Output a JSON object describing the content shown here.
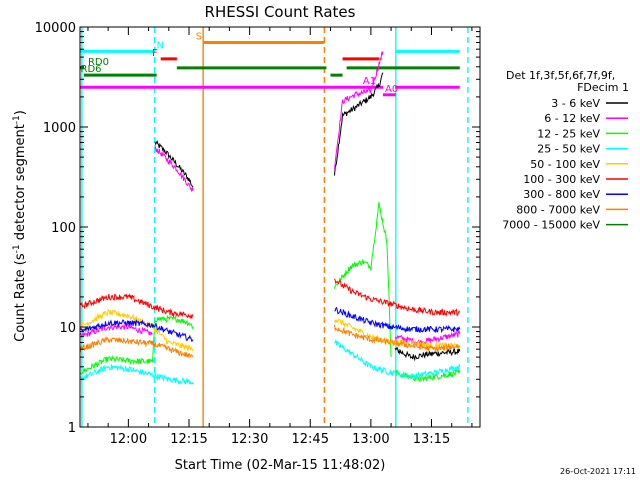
{
  "chart_data": {
    "type": "line",
    "title": "RHESSI Count Rates",
    "xlabel": "Start Time (02-Mar-15 11:48:02)",
    "ylabel": "Count Rate (s⁻¹ detector segment⁻¹)",
    "ylabel_parts": {
      "main": "Count Rate (s",
      "sup1": "-1",
      "mid": " detector segment",
      "sup2": "-1",
      "end": ")"
    },
    "y_scale": "log",
    "ylim": [
      1,
      10000
    ],
    "xlim": [
      "11:48:02",
      "13:27:00"
    ],
    "x_ticks": [
      "12:00",
      "12:15",
      "12:30",
      "12:45",
      "13:00",
      "13:15"
    ],
    "y_ticks": [
      "1",
      "10",
      "100",
      "1000",
      "10000"
    ],
    "legend_header": [
      "Det 1f,3f,5f,6f,7f,9f,",
      "FDecim 1"
    ],
    "legend_position": "right",
    "timestamp": "26-Oct-2021 17:11",
    "series": [
      {
        "name": "3 - 6 keV",
        "color": "#000000",
        "segments": [
          [
            [
              "12:06:35",
              700
            ],
            [
              "12:09",
              580
            ],
            [
              "12:12",
              420
            ],
            [
              "12:15",
              300
            ],
            [
              "12:16",
              250
            ]
          ],
          [
            [
              "12:51",
              330
            ],
            [
              "12:53",
              1300
            ],
            [
              "12:56",
              1550
            ],
            [
              "13:00",
              2000
            ],
            [
              "13:02",
              2600
            ],
            [
              "13:03",
              3500
            ]
          ],
          [
            [
              "13:06",
              6
            ],
            [
              "13:10",
              5
            ],
            [
              "13:15",
              5.4
            ],
            [
              "13:22",
              5.7
            ]
          ]
        ]
      },
      {
        "name": "6 - 12 keV",
        "color": "#ff00ff",
        "segments": [
          [
            [
              "11:48",
              8
            ],
            [
              "11:55",
              10
            ],
            [
              "12:00",
              10
            ],
            [
              "12:06",
              8.5
            ]
          ],
          [
            [
              "12:06:35",
              620
            ],
            [
              "12:09",
              500
            ],
            [
              "12:12",
              380
            ],
            [
              "12:15",
              260
            ],
            [
              "12:16",
              230
            ]
          ],
          [
            [
              "12:51",
              400
            ],
            [
              "12:53",
              1800
            ],
            [
              "12:56",
              2100
            ],
            [
              "13:00",
              2300
            ],
            [
              "13:03",
              5700
            ]
          ],
          [
            [
              "13:06",
              8
            ],
            [
              "13:12",
              7
            ],
            [
              "13:22",
              8.5
            ]
          ]
        ]
      },
      {
        "name": "12 - 25 keV",
        "color": "#00ff00",
        "segments": [
          [
            [
              "11:48",
              3.5
            ],
            [
              "11:55",
              4.8
            ],
            [
              "12:00",
              4.6
            ],
            [
              "12:06",
              4.5
            ],
            [
              "12:06:35",
              12
            ],
            [
              "12:12",
              12
            ],
            [
              "12:15",
              11
            ],
            [
              "12:16",
              10
            ]
          ],
          [
            [
              "12:51",
              25
            ],
            [
              "12:55",
              40
            ],
            [
              "12:58",
              45
            ],
            [
              "13:00",
              40
            ],
            [
              "13:02",
              170
            ],
            [
              "13:04",
              70
            ],
            [
              "13:05",
              5
            ]
          ],
          [
            [
              "13:06",
              3.5
            ],
            [
              "13:12",
              3.0
            ],
            [
              "13:22",
              3.5
            ]
          ]
        ]
      },
      {
        "name": "25 - 50 keV",
        "color": "#00ffff",
        "segments": [
          [
            [
              "11:48",
              3.0
            ],
            [
              "11:55",
              4.0
            ],
            [
              "12:00",
              3.8
            ],
            [
              "12:06",
              3.3
            ],
            [
              "12:10",
              3.0
            ],
            [
              "12:16",
              2.8
            ]
          ],
          [
            [
              "12:51",
              7
            ],
            [
              "12:55",
              5.5
            ],
            [
              "13:00",
              4.0
            ],
            [
              "13:05",
              3.5
            ],
            [
              "13:10",
              3.2
            ],
            [
              "13:16",
              3.5
            ],
            [
              "13:22",
              4.0
            ]
          ]
        ]
      },
      {
        "name": "50 - 100 keV",
        "color": "#ffcc00",
        "segments": [
          [
            [
              "11:48",
              10
            ],
            [
              "11:55",
              14
            ],
            [
              "12:00",
              13
            ],
            [
              "12:06",
              10
            ],
            [
              "12:10",
              7
            ],
            [
              "12:16",
              6
            ]
          ],
          [
            [
              "12:51",
              12
            ],
            [
              "12:55",
              10
            ],
            [
              "13:00",
              8
            ],
            [
              "13:05",
              7
            ],
            [
              "13:10",
              7
            ],
            [
              "13:16",
              6.5
            ],
            [
              "13:22",
              6.5
            ]
          ]
        ]
      },
      {
        "name": "100 - 300 keV",
        "color": "#ff0000",
        "segments": [
          [
            [
              "11:48",
              16
            ],
            [
              "11:55",
              20
            ],
            [
              "12:00",
              20
            ],
            [
              "12:06",
              16
            ],
            [
              "12:10",
              14
            ],
            [
              "12:16",
              13
            ]
          ],
          [
            [
              "12:51",
              30
            ],
            [
              "12:53",
              26
            ],
            [
              "12:56",
              22
            ],
            [
              "13:00",
              19
            ],
            [
              "13:05",
              17
            ],
            [
              "13:10",
              15
            ],
            [
              "13:16",
              14
            ],
            [
              "13:22",
              14
            ]
          ]
        ]
      },
      {
        "name": "300 - 800 keV",
        "color": "#0000ff",
        "segments": [
          [
            [
              "11:48",
              9
            ],
            [
              "11:55",
              11
            ],
            [
              "12:00",
              11
            ],
            [
              "12:06",
              10.5
            ],
            [
              "12:10",
              9
            ],
            [
              "12:16",
              7.5
            ]
          ],
          [
            [
              "12:51",
              15
            ],
            [
              "12:55",
              13
            ],
            [
              "13:00",
              11
            ],
            [
              "13:05",
              10
            ],
            [
              "13:10",
              9.5
            ],
            [
              "13:16",
              9.5
            ],
            [
              "13:22",
              9.5
            ]
          ]
        ]
      },
      {
        "name": "800 - 7000 keV",
        "color": "#ff8000",
        "segments": [
          [
            [
              "11:48",
              6
            ],
            [
              "11:55",
              7.5
            ],
            [
              "12:00",
              7.2
            ],
            [
              "12:06",
              6.8
            ],
            [
              "12:10",
              6
            ],
            [
              "12:16",
              5
            ]
          ],
          [
            [
              "12:51",
              10
            ],
            [
              "12:55",
              8.5
            ],
            [
              "13:00",
              7.5
            ],
            [
              "13:05",
              7
            ],
            [
              "13:10",
              6.5
            ],
            [
              "13:16",
              6
            ],
            [
              "13:22",
              6.5
            ]
          ]
        ]
      },
      {
        "name": "7000 - 15000 keV",
        "color": "#008000",
        "segments": []
      }
    ],
    "vertical_lines": [
      {
        "t": "11:48:30",
        "color": "#00ffff",
        "style": "solid"
      },
      {
        "t": "12:06:30",
        "color": "#00ffff",
        "style": "dashed"
      },
      {
        "t": "12:18:30",
        "color": "#ff8000",
        "style": "solid"
      },
      {
        "t": "12:48:30",
        "color": "#ff8000",
        "style": "dashed"
      },
      {
        "t": "13:06:10",
        "color": "#00ffff",
        "style": "solid"
      },
      {
        "t": "13:24:00",
        "color": "#00ffff",
        "style": "dashed"
      }
    ],
    "flag_bars": [
      {
        "label": "N",
        "color": "#00ffff",
        "y": 5700,
        "segments": [
          [
            "11:48",
            "12:06:30"
          ],
          [
            "13:06:10",
            "13:22"
          ]
        ],
        "label_at": "12:07"
      },
      {
        "label": "S",
        "color": "#ff8000",
        "y": 7000,
        "segments": [
          [
            "12:18:30",
            "12:48:30"
          ]
        ],
        "label_at": "12:16:40"
      },
      {
        "label": "F",
        "color": "#ff0000",
        "y": 4800,
        "segments": [
          [
            "12:08",
            "12:12"
          ],
          [
            "12:53",
            "13:02"
          ]
        ],
        "label_at": "12:05:50"
      },
      {
        "label": "RD0",
        "color": "#008000",
        "y": 3900,
        "segments": [
          [
            "11:48",
            "11:49"
          ],
          [
            "12:12",
            "12:49"
          ],
          [
            "12:54",
            "13:22"
          ]
        ],
        "label_at": "11:50"
      },
      {
        "label": "RD6",
        "color": "#008000",
        "y": 3300,
        "segments": [
          [
            "11:49",
            "12:07"
          ],
          [
            "12:50",
            "12:53"
          ]
        ],
        "label_at": "11:48:10"
      },
      {
        "label": "A1",
        "color": "#ff00ff",
        "y": 2500,
        "segments": [
          [
            "11:48",
            "13:03"
          ],
          [
            "13:06",
            "13:22"
          ]
        ],
        "label_at": "12:58"
      },
      {
        "label": "A0",
        "color": "#ff00ff",
        "y": 2100,
        "segments": [
          [
            "13:03",
            "13:06:10"
          ]
        ],
        "label_at": "13:03:30"
      }
    ]
  }
}
